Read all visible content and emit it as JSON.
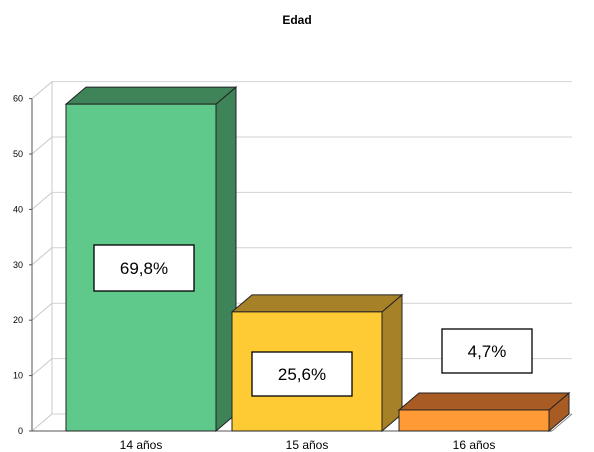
{
  "chart_data": {
    "type": "bar",
    "title": "Edad",
    "categories": [
      "14 años",
      "15 años",
      "16 años"
    ],
    "values": [
      59,
      21.5,
      3.8
    ],
    "data_labels": [
      "69,8%",
      "25,6%",
      "4,7%"
    ],
    "ylim": [
      0,
      60
    ],
    "yticks": [
      0,
      10,
      20,
      30,
      40,
      50,
      60
    ],
    "grid": true,
    "style": "3d",
    "colors": {
      "front": [
        "#5ec98a",
        "#ffcb35",
        "#ff9a35"
      ],
      "top": [
        "#3f8458",
        "#a78128",
        "#a95b24"
      ],
      "side": [
        "#3f8458",
        "#a78128",
        "#a95b24"
      ]
    }
  }
}
